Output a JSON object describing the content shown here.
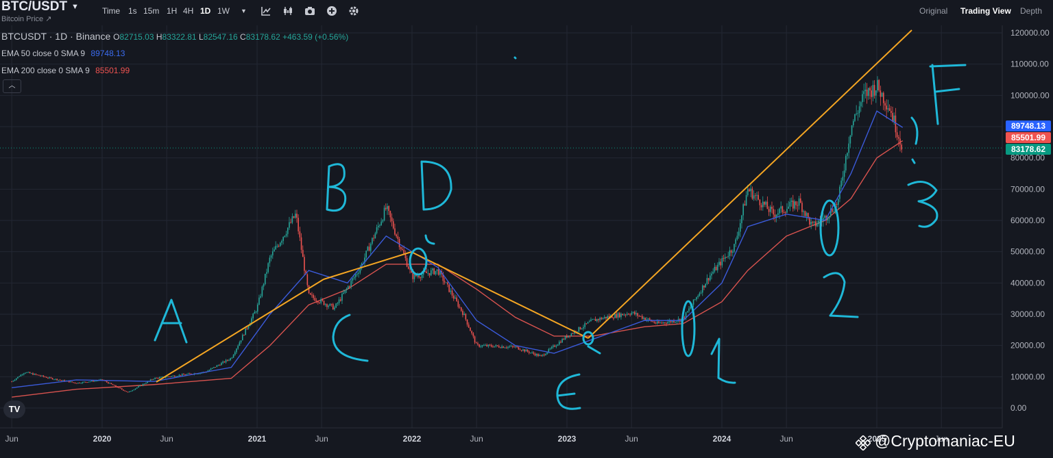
{
  "header": {
    "symbol": "BTC/USDT",
    "subtitle": "Bitcoin Price",
    "timeframes": [
      "Time",
      "1s",
      "15m",
      "1H",
      "4H",
      "1D",
      "1W"
    ],
    "active_timeframe": "1D",
    "views": [
      "Original",
      "Trading View",
      "Depth"
    ],
    "active_view": "Trading View"
  },
  "legend": {
    "title": "BTCUSDT · 1D · Binance",
    "open_label": "O",
    "open": "82715.03",
    "high_label": "H",
    "high": "83322.81",
    "low_label": "L",
    "low": "82547.16",
    "close_label": "C",
    "close": "83178.62",
    "change": "+463.59 (+0.56%)",
    "ema50_label": "EMA 50 close 0 SMA 9",
    "ema50_value": "89748.13",
    "ema200_label": "EMA 200 close 0 SMA 9",
    "ema200_value": "85501.99"
  },
  "colors": {
    "up": "#26a69a",
    "down": "#ef5350",
    "ema50": "#3b5bdb",
    "ema200": "#d9534f",
    "trendline": "#f5a623",
    "annotation": "#1fb8d8"
  },
  "price_labels": {
    "ema50": "89748.13",
    "ema200": "85501.99",
    "last": "83178.62"
  },
  "chart_data": {
    "type": "line",
    "title": "BTCUSDT · 1D · Binance",
    "x_ticks": [
      "Jun",
      "2020",
      "Jun",
      "2021",
      "Jun",
      "2022",
      "Jun",
      "2023",
      "Jun",
      "2024",
      "Jun",
      "2025",
      "Jun"
    ],
    "y_ticks": [
      "120000.00",
      "110000.00",
      "100000.00",
      "90000.00",
      "80000.00",
      "70000.00",
      "60000.00",
      "50000.00",
      "40000.00",
      "30000.00",
      "20000.00",
      "10000.00",
      "0.00"
    ],
    "ylim": [
      -4000,
      122000
    ],
    "series": [
      {
        "name": "BTCUSDT",
        "x": [
          "2019-06",
          "2019-07",
          "2019-09",
          "2019-11",
          "2020-01",
          "2020-03",
          "2020-05",
          "2020-07",
          "2020-09",
          "2020-11",
          "2021-01",
          "2021-02",
          "2021-04",
          "2021-05",
          "2021-07",
          "2021-09",
          "2021-11",
          "2022-01",
          "2022-03",
          "2022-05",
          "2022-06",
          "2022-09",
          "2022-11",
          "2023-01",
          "2023-03",
          "2023-04",
          "2023-06",
          "2023-08",
          "2023-10",
          "2023-12",
          "2024-02",
          "2024-03",
          "2024-05",
          "2024-07",
          "2024-08",
          "2024-09",
          "2024-10",
          "2024-11",
          "2024-12",
          "2025-01",
          "2025-02",
          "2025-03"
        ],
        "values": [
          8500,
          11500,
          9500,
          8000,
          9000,
          5000,
          9500,
          10500,
          11500,
          16000,
          32000,
          48000,
          62000,
          36000,
          32000,
          45000,
          64000,
          42000,
          44000,
          30000,
          20000,
          19500,
          16500,
          23000,
          28000,
          29000,
          30500,
          27000,
          28500,
          42000,
          52000,
          70000,
          62000,
          66000,
          58000,
          61000,
          66000,
          90000,
          100000,
          103000,
          96000,
          83178
        ]
      },
      {
        "name": "EMA 50 close 0 SMA 9",
        "x": [
          "2019-06",
          "2019-11",
          "2020-05",
          "2020-11",
          "2021-02",
          "2021-05",
          "2021-08",
          "2021-11",
          "2022-03",
          "2022-06",
          "2022-09",
          "2022-12",
          "2023-03",
          "2023-07",
          "2023-10",
          "2024-01",
          "2024-03",
          "2024-06",
          "2024-09",
          "2024-11",
          "2025-01",
          "2025-03"
        ],
        "values": [
          6500,
          9000,
          8500,
          13000,
          30000,
          44000,
          40000,
          55000,
          45000,
          28000,
          20000,
          17500,
          22000,
          28000,
          28000,
          40000,
          58000,
          62000,
          60000,
          75000,
          95000,
          89748
        ]
      },
      {
        "name": "EMA 200 close 0 SMA 9",
        "x": [
          "2019-06",
          "2019-11",
          "2020-05",
          "2020-11",
          "2021-02",
          "2021-05",
          "2021-08",
          "2021-11",
          "2022-03",
          "2022-06",
          "2022-09",
          "2022-12",
          "2023-03",
          "2023-07",
          "2023-10",
          "2024-01",
          "2024-03",
          "2024-06",
          "2024-09",
          "2024-11",
          "2025-01",
          "2025-03"
        ],
        "values": [
          3500,
          6000,
          7500,
          9500,
          20000,
          33000,
          38000,
          46000,
          46000,
          38000,
          29000,
          23000,
          23000,
          26000,
          27000,
          34000,
          44000,
          55000,
          60000,
          67000,
          80000,
          85501
        ]
      }
    ]
  },
  "annotations": {
    "letters": [
      "A",
      "B",
      "C",
      "D",
      "E",
      "F"
    ],
    "numbers": [
      "0",
      "1",
      "0",
      "2",
      "3"
    ]
  },
  "watermark": "@Cryptomaniac-EU",
  "logo": "TV"
}
